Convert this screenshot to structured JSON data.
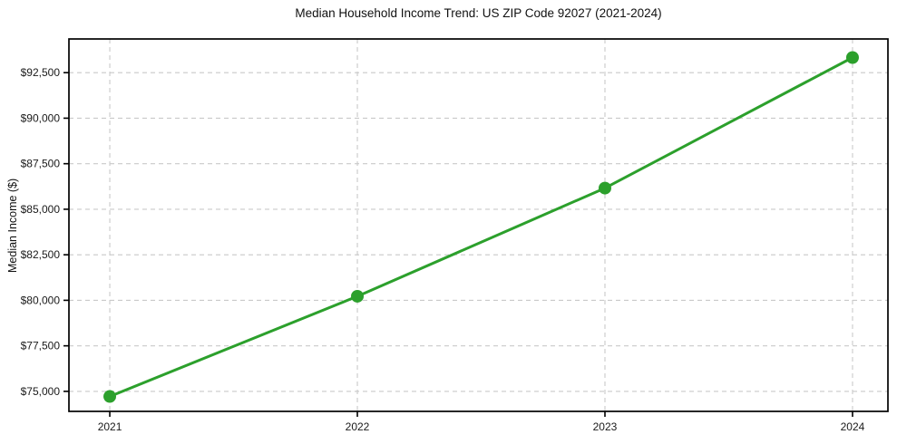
{
  "figure": {
    "background": "#ffffff"
  },
  "chart_data": {
    "type": "line",
    "title": "Median Household Income Trend: US ZIP Code 92027 (2021-2024)",
    "xlabel": "",
    "ylabel": "Median Income ($)",
    "x": [
      2021,
      2022,
      2023,
      2024
    ],
    "xtick_labels": [
      "2021",
      "2022",
      "2023",
      "2024"
    ],
    "series": [
      {
        "name": "Median Household Income",
        "values": [
          74720,
          80220,
          86160,
          93330
        ]
      }
    ],
    "ytick_values": [
      75000,
      77500,
      80000,
      82500,
      85000,
      87500,
      90000,
      92500
    ],
    "ytick_labels": [
      "$75,000",
      "$77,500",
      "$80,000",
      "$82,500",
      "$85,000",
      "$87,500",
      "$90,000",
      "$92,500"
    ],
    "xlim": [
      2020.835,
      2024.143
    ],
    "ylim": [
      73900,
      94350
    ],
    "grid": true,
    "grid_style": "dashed",
    "legend": "none",
    "colors": {
      "line": "#2ca02c",
      "marker": "#2ca02c",
      "grid": "#c9c9c9",
      "axis": "#000000",
      "text": "#1a1a1a",
      "background": "#ffffff"
    }
  }
}
